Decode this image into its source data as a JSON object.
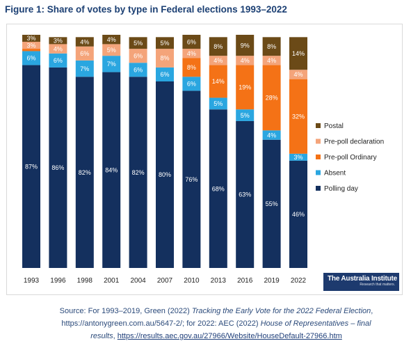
{
  "title": "Figure 1: Share of votes by type in Federal elections 1993–2022",
  "chart_data": {
    "type": "bar",
    "stacked": true,
    "categories": [
      "1993",
      "1996",
      "1998",
      "2001",
      "2004",
      "2007",
      "2010",
      "2013",
      "2016",
      "2019",
      "2022"
    ],
    "ylim": [
      0,
      100
    ],
    "grid": false,
    "legend_position": "right",
    "series": [
      {
        "name": "Polling day",
        "color": "#14305e",
        "values": [
          87,
          86,
          82,
          84,
          82,
          80,
          76,
          68,
          63,
          55,
          46
        ],
        "labels": [
          "87%",
          "86%",
          "82%",
          "84%",
          "82%",
          "80%",
          "76%",
          "68%",
          "63%",
          "55%",
          "46%"
        ]
      },
      {
        "name": "Absent",
        "color": "#2aa6e0",
        "values": [
          6,
          6,
          7,
          7,
          6,
          6,
          6,
          5,
          5,
          4,
          3
        ],
        "labels": [
          "6%",
          "6%",
          "7%",
          "7%",
          "6%",
          "6%",
          "6%",
          "5%",
          "5%",
          "4%",
          "3%"
        ]
      },
      {
        "name": "Pre-poll Ordinary",
        "color": "#f47216",
        "values": [
          1,
          0,
          0,
          0,
          0,
          0,
          8,
          14,
          19,
          28,
          32
        ],
        "labels": [
          "",
          "",
          "",
          "",
          "",
          "",
          "8%",
          "14%",
          "19%",
          "28%",
          "32%"
        ]
      },
      {
        "name": "Pre-poll declaration",
        "color": "#f4a47a",
        "values": [
          3,
          4,
          6,
          5,
          6,
          8,
          4,
          4,
          4,
          4,
          4
        ],
        "labels": [
          "3%",
          "4%",
          "6%",
          "5%",
          "6%",
          "8%",
          "4%",
          "4%",
          "4%",
          "4%",
          "4%"
        ]
      },
      {
        "name": "Postal",
        "color": "#6b4a17",
        "values": [
          3,
          3,
          4,
          4,
          5,
          5,
          6,
          8,
          9,
          8,
          14
        ],
        "labels": [
          "3%",
          "3%",
          "4%",
          "4%",
          "5%",
          "5%",
          "6%",
          "8%",
          "9%",
          "8%",
          "14%"
        ]
      }
    ],
    "legend_order": [
      "Postal",
      "Pre-poll declaration",
      "Pre-poll Ordinary",
      "Absent",
      "Polling day"
    ],
    "label_colors": {
      "Polling day": "#ffffff",
      "Absent": "#ffffff",
      "Pre-poll Ordinary": "#ffffff",
      "Pre-poll declaration": "#ffffff",
      "Postal": "#ffffff"
    }
  },
  "logo": {
    "text": "The Australia Institute",
    "tagline": "Research that matters."
  },
  "source": {
    "line1_prefix": "Source: For 1993–2019, Green (2022) ",
    "line1_italic": "Tracking the Early Vote for the 2022 Federal Election",
    "line1_suffix": ",",
    "line2_prefix": "https://antonygreen.com.au/5647-2/; for 2022: AEC (2022) ",
    "line2_italic": "House of Representatives – final",
    "line3_italic": "results",
    "line3_sep": ", ",
    "line3_link": "https://results.aec.gov.au/27966/Website/HouseDefault-27966.htm"
  }
}
